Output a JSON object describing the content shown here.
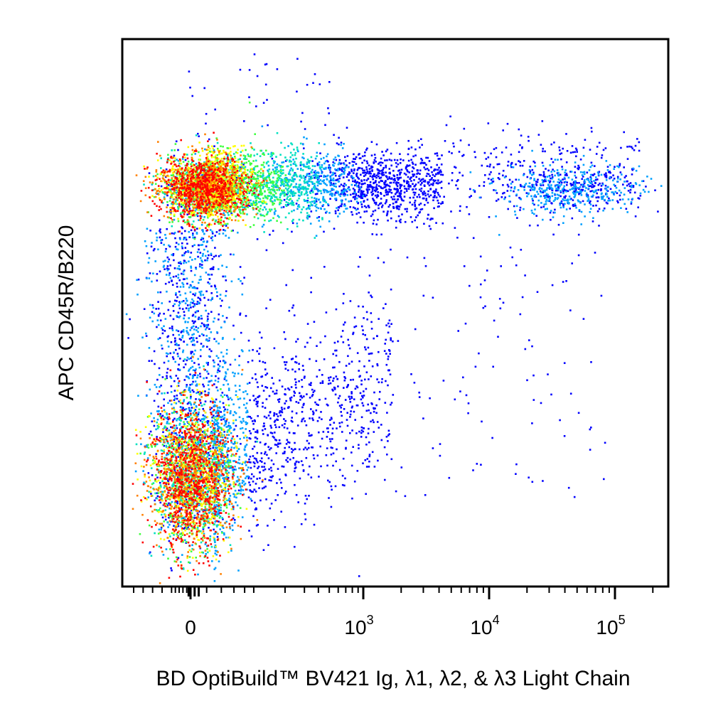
{
  "chart_data": {
    "type": "scatter",
    "subtype": "flow-cytometry pseudocolor density dot plot",
    "xlabel": "BD OptiBuild™ BV421 Ig, λ1, λ2, & λ3 Light Chain",
    "ylabel": "APC CD45R/B220",
    "x_scale": "biexponential (log above ~10^2)",
    "y_scale": "biexponential (unlabeled)",
    "xlim": [
      -300,
      250000
    ],
    "x_ticks": [
      {
        "value": 0,
        "label": "0"
      },
      {
        "value": 1000,
        "base": "10",
        "exponent": "3"
      },
      {
        "value": 10000,
        "base": "10",
        "exponent": "4"
      },
      {
        "value": 100000,
        "base": "10",
        "exponent": "5"
      }
    ],
    "y_ticks": [],
    "grid": false,
    "legend": "none",
    "colormap": [
      "#0000ff",
      "#00a0ff",
      "#00e0c0",
      "#40ff40",
      "#ffff00",
      "#ff8000",
      "#ff0000"
    ],
    "populations": [
      {
        "x_center": 0,
        "x_spread": 50,
        "y_level": "high",
        "density": "very high"
      },
      {
        "x_range": [
          0,
          2000
        ],
        "y_level": "high",
        "density": "high, decreasing with x"
      },
      {
        "x_range": [
          10000,
          100000
        ],
        "y_level": "high",
        "density": "moderate",
        "x_center": 50000
      },
      {
        "x_center": 0,
        "x_spread": 60,
        "y_level": "low",
        "density": "very high"
      },
      {
        "x_range": [
          0,
          1000
        ],
        "y_level": "low-to-high",
        "density": "sparse"
      }
    ]
  }
}
